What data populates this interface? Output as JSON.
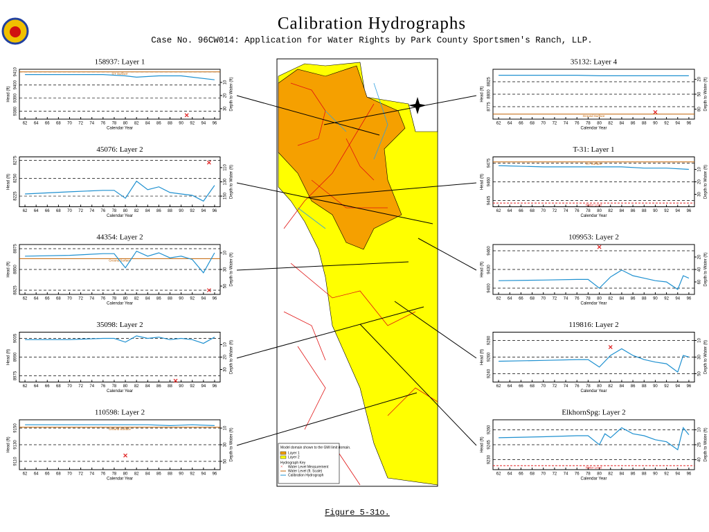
{
  "header": {
    "title": "Calibration Hydrographs",
    "subtitle": "Case No. 96CW014: Application for Water Rights by Park County Sportsmen's Ranch, LLP."
  },
  "caption": "Figure 5-31o.",
  "map": {
    "legend": {
      "note": "Model domain shown to the GMI limit domain.",
      "layers": [
        {
          "label": "Layer 1",
          "color": "#f5a000"
        },
        {
          "label": "Layer 2",
          "color": "#ffff00"
        }
      ],
      "key_title": "Hydrograph Key",
      "key": [
        {
          "label": "Water Level Measurement",
          "color": "#e02020"
        },
        {
          "label": "Water Level (ft. Scale)",
          "color": "#c06000"
        },
        {
          "label": "Calibration Hydrograph",
          "color": "#1e90d0"
        }
      ]
    }
  },
  "chart_data": [
    {
      "type": "line",
      "title": "158937: Layer 1",
      "xlabel": "Calendar Year",
      "ylabel": "Head (ft)",
      "y2label": "Depth to Water (ft)",
      "xlim": [
        61,
        97
      ],
      "xticks": [
        62,
        64,
        66,
        68,
        70,
        72,
        74,
        76,
        78,
        80,
        82,
        84,
        86,
        88,
        90,
        92,
        94,
        96
      ],
      "ylim": [
        9374,
        9412
      ],
      "yticks": [
        9380,
        9390,
        9400,
        9410
      ],
      "y2lim": [
        38,
        0
      ],
      "y2ticks": [
        10,
        20,
        30
      ],
      "series": [
        {
          "color": "#1e90d0",
          "x": [
            62,
            70,
            76,
            80,
            82,
            86,
            90,
            96
          ],
          "values": [
            9408,
            9408,
            9408,
            9407,
            9406,
            9407,
            9407,
            9404
          ]
        }
      ],
      "measurements": {
        "color": "#e02020",
        "x": [
          91
        ],
        "values": [
          9377
        ]
      },
      "references": [
        {
          "label": "GT Surface",
          "value": 9410,
          "color": "#c06000"
        }
      ]
    },
    {
      "type": "line",
      "title": "45076: Layer 2",
      "xlabel": "Calendar Year",
      "ylabel": "Head (ft)",
      "y2label": "Depth to Water (ft)",
      "xlim": [
        61,
        97
      ],
      "xticks": [
        62,
        64,
        66,
        68,
        70,
        72,
        74,
        76,
        78,
        80,
        82,
        84,
        86,
        88,
        90,
        92,
        94,
        96
      ],
      "ylim": [
        8210,
        8280
      ],
      "yticks": [
        8225,
        8250,
        8275
      ],
      "y2lim": [
        165,
        95
      ],
      "y2ticks": [
        110,
        130,
        150
      ],
      "series": [
        {
          "color": "#1e90d0",
          "x": [
            62,
            70,
            76,
            78,
            80,
            82,
            84,
            86,
            88,
            90,
            92,
            94,
            96
          ],
          "values": [
            8228,
            8231,
            8233,
            8233,
            8222,
            8246,
            8234,
            8238,
            8230,
            8228,
            8226,
            8218,
            8240
          ]
        }
      ],
      "measurements": {
        "color": "#e02020",
        "x": [
          95
        ],
        "values": [
          8272
        ]
      },
      "references": []
    },
    {
      "type": "line",
      "title": "44354: Layer 2",
      "xlabel": "Calendar Year",
      "ylabel": "Head (ft)",
      "y2label": "Depth to Water (ft)",
      "xlim": [
        61,
        97
      ],
      "xticks": [
        62,
        64,
        66,
        68,
        70,
        72,
        74,
        76,
        78,
        80,
        82,
        84,
        86,
        88,
        90,
        92,
        94,
        96
      ],
      "ylim": [
        8820,
        8880
      ],
      "yticks": [
        8825,
        8850,
        8875
      ],
      "y2lim": [
        60,
        0
      ],
      "y2ticks": [
        10,
        30,
        50
      ],
      "series": [
        {
          "color": "#1e90d0",
          "x": [
            62,
            70,
            76,
            78,
            80,
            82,
            84,
            86,
            88,
            90,
            92,
            94,
            96
          ],
          "values": [
            8866,
            8867,
            8869,
            8869,
            8852,
            8872,
            8866,
            8870,
            8864,
            8866,
            8862,
            8846,
            8870
          ]
        }
      ],
      "measurements": {
        "color": "#e02020",
        "x": [
          95
        ],
        "values": [
          8825
        ]
      },
      "references": [
        {
          "label": "Ground Surface",
          "value": 8863,
          "color": "#c06000"
        }
      ]
    },
    {
      "type": "line",
      "title": "35098: Layer 2",
      "xlabel": "Calendar Year",
      "ylabel": "Head (ft)",
      "y2label": "Depth to Water (ft)",
      "xlim": [
        61,
        97
      ],
      "xticks": [
        62,
        64,
        66,
        68,
        70,
        72,
        74,
        76,
        78,
        80,
        82,
        84,
        86,
        88,
        90,
        92,
        94,
        96
      ],
      "ylim": [
        8970,
        9010
      ],
      "yticks": [
        8975,
        8990,
        9005
      ],
      "y2lim": [
        40,
        0
      ],
      "y2ticks": [
        10,
        20,
        30
      ],
      "series": [
        {
          "color": "#1e90d0",
          "x": [
            62,
            70,
            76,
            78,
            80,
            82,
            84,
            86,
            88,
            90,
            92,
            94,
            96
          ],
          "values": [
            9004,
            9004,
            9005,
            9005,
            9002,
            9007,
            9005,
            9006,
            9004,
            9005,
            9004,
            9001,
            9006
          ]
        }
      ],
      "measurements": {
        "color": "#e02020",
        "x": [
          89
        ],
        "values": [
          8971
        ]
      },
      "references": []
    },
    {
      "type": "line",
      "title": "110598: Layer 2",
      "xlabel": "Calendar Year",
      "ylabel": "Head (ft)",
      "y2label": "Depth to Water (ft)",
      "xlim": [
        61,
        97
      ],
      "xticks": [
        62,
        64,
        66,
        68,
        70,
        72,
        74,
        76,
        78,
        80,
        82,
        84,
        86,
        88,
        90,
        92,
        94,
        96
      ],
      "ylim": [
        9100,
        9160
      ],
      "yticks": [
        9110,
        9130,
        9150
      ],
      "y2lim": [
        60,
        0
      ],
      "y2ticks": [
        10,
        30,
        50
      ],
      "series": [
        {
          "color": "#1e90d0",
          "x": [
            62,
            70,
            76,
            80,
            84,
            88,
            92,
            96
          ],
          "values": [
            9154,
            9154,
            9154,
            9154,
            9154,
            9153,
            9154,
            9153
          ]
        }
      ],
      "measurements": {
        "color": "#e02020",
        "x": [
          80
        ],
        "values": [
          9117
        ]
      },
      "references": [
        {
          "label": "Ground Surface",
          "value": 9151,
          "color": "#c06000"
        }
      ]
    },
    {
      "type": "line",
      "title": "35132: Layer 4",
      "xlabel": "Calendar Year",
      "ylabel": "Head (ft)",
      "y2label": "Depth to Water (ft)",
      "xlim": [
        61,
        97
      ],
      "xticks": [
        62,
        64,
        66,
        68,
        70,
        72,
        74,
        76,
        78,
        80,
        82,
        84,
        86,
        88,
        90,
        92,
        94,
        96
      ],
      "ylim": [
        8750,
        8850
      ],
      "yticks": [
        8775,
        8800,
        8825
      ],
      "y2lim": [
        100,
        0
      ],
      "y2ticks": [
        20,
        50,
        80
      ],
      "series": [
        {
          "color": "#1e90d0",
          "x": [
            62,
            70,
            76,
            80,
            86,
            90,
            96
          ],
          "values": [
            8838,
            8838,
            8838,
            8837,
            8837,
            8837,
            8837
          ]
        }
      ],
      "measurements": {
        "color": "#e02020",
        "x": [
          90
        ],
        "values": [
          8764
        ]
      },
      "references": [
        {
          "label": "Ground Surface",
          "value": 8760,
          "color": "#c06000"
        }
      ]
    },
    {
      "type": "line",
      "title": "T-31: Layer 1",
      "xlabel": "Calendar Year",
      "ylabel": "Head (ft)",
      "y2label": "Depth to Water (ft)",
      "xlim": [
        61,
        97
      ],
      "xticks": [
        62,
        64,
        66,
        68,
        70,
        72,
        74,
        76,
        78,
        80,
        82,
        84,
        86,
        88,
        90,
        92,
        94,
        96
      ],
      "ylim": [
        9440,
        9480
      ],
      "yticks": [
        9445,
        9460,
        9475
      ],
      "y2lim": [
        40,
        0
      ],
      "y2ticks": [
        10,
        20,
        30
      ],
      "series": [
        {
          "color": "#1e90d0",
          "x": [
            62,
            70,
            76,
            80,
            84,
            88,
            92,
            96
          ],
          "values": [
            9473,
            9472,
            9472,
            9472,
            9472,
            9471,
            9471,
            9470
          ]
        }
      ],
      "measurements": {
        "color": "#e02020",
        "x": [],
        "values": []
      },
      "references": [
        {
          "label": "GT Surface",
          "value": 9476,
          "color": "#c06000"
        },
        {
          "label": "Water Level",
          "value": 9443,
          "color": "#e02020"
        }
      ]
    },
    {
      "type": "line",
      "title": "109953: Layer 2",
      "xlabel": "Calendar Year",
      "ylabel": "Head (ft)",
      "y2label": "Depth to Water (ft)",
      "xlim": [
        61,
        97
      ],
      "xticks": [
        62,
        64,
        66,
        68,
        70,
        72,
        74,
        76,
        78,
        80,
        82,
        84,
        86,
        88,
        90,
        92,
        94,
        96
      ],
      "ylim": [
        9390,
        9470
      ],
      "yticks": [
        9400,
        9430,
        9460
      ],
      "y2lim": [
        80,
        0
      ],
      "y2ticks": [
        20,
        40,
        60
      ],
      "series": [
        {
          "color": "#1e90d0",
          "x": [
            62,
            70,
            76,
            78,
            80,
            82,
            84,
            86,
            88,
            90,
            92,
            94,
            95,
            96
          ],
          "values": [
            9412,
            9413,
            9414,
            9414,
            9400,
            9418,
            9429,
            9420,
            9416,
            9412,
            9410,
            9398,
            9420,
            9416
          ]
        }
      ],
      "measurements": {
        "color": "#e02020",
        "x": [
          80
        ],
        "values": [
          9466
        ]
      },
      "references": []
    },
    {
      "type": "line",
      "title": "119816: Layer 2",
      "xlabel": "Calendar Year",
      "ylabel": "Head (ft)",
      "y2label": "Depth to Water (ft)",
      "xlim": [
        61,
        97
      ],
      "xticks": [
        62,
        64,
        66,
        68,
        70,
        72,
        74,
        76,
        78,
        80,
        82,
        84,
        86,
        88,
        90,
        92,
        94,
        96
      ],
      "ylim": [
        9230,
        9290
      ],
      "yticks": [
        9240,
        9260,
        9280
      ],
      "y2lim": [
        60,
        0
      ],
      "y2ticks": [
        10,
        30,
        50
      ],
      "series": [
        {
          "color": "#1e90d0",
          "x": [
            62,
            70,
            76,
            78,
            80,
            82,
            84,
            86,
            88,
            90,
            92,
            94,
            95,
            96
          ],
          "values": [
            9255,
            9256,
            9257,
            9257,
            9248,
            9262,
            9270,
            9262,
            9257,
            9254,
            9252,
            9242,
            9262,
            9260
          ]
        }
      ],
      "measurements": {
        "color": "#e02020",
        "x": [
          82
        ],
        "values": [
          9272
        ]
      },
      "references": []
    },
    {
      "type": "line",
      "title": "ElkhornSpg: Layer 2",
      "xlabel": "Calendar Year",
      "ylabel": "Head (ft)",
      "y2label": "Depth to Water (ft)",
      "xlim": [
        61,
        97
      ],
      "xticks": [
        62,
        64,
        66,
        68,
        70,
        72,
        74,
        76,
        78,
        80,
        82,
        84,
        86,
        88,
        90,
        92,
        94,
        96
      ],
      "ylim": [
        9220,
        9270
      ],
      "yticks": [
        9230,
        9245,
        9260
      ],
      "y2lim": [
        50,
        0
      ],
      "y2ticks": [
        10,
        25,
        40
      ],
      "series": [
        {
          "color": "#1e90d0",
          "x": [
            62,
            70,
            76,
            78,
            80,
            81,
            82,
            84,
            86,
            88,
            90,
            92,
            94,
            95,
            96
          ],
          "values": [
            9252,
            9253,
            9254,
            9254,
            9245,
            9256,
            9252,
            9262,
            9256,
            9254,
            9250,
            9248,
            9240,
            9262,
            9255
          ]
        }
      ],
      "measurements": {
        "color": "#e02020",
        "x": [],
        "values": []
      },
      "references": [
        {
          "label": "Water Level",
          "value": 9224,
          "color": "#e02020"
        }
      ]
    }
  ]
}
